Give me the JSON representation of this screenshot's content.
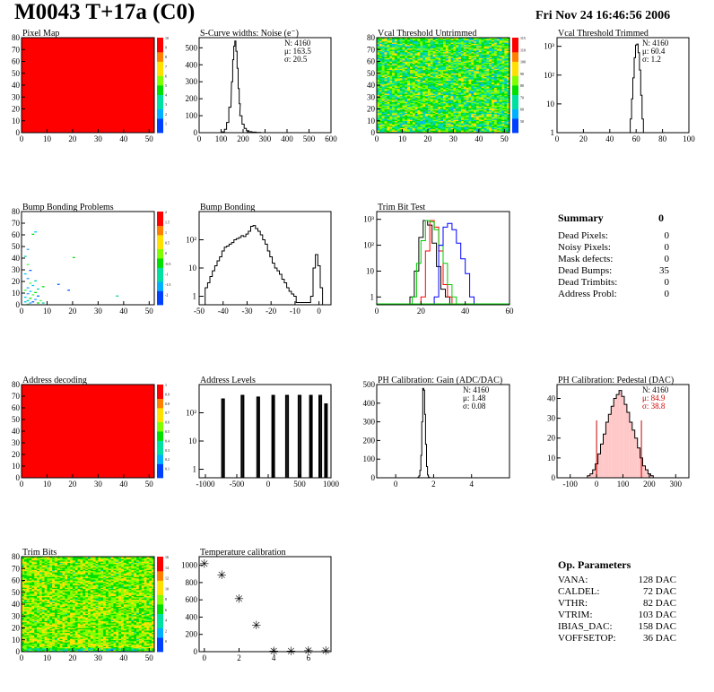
{
  "header": {
    "title": "M0043 T+17a (C0)",
    "date": "Fri Nov 24 16:46:56 2006"
  },
  "chart_data": [
    {
      "type": "heatmap",
      "title": "Pixel Map",
      "xlim": [
        0,
        52
      ],
      "ylim": [
        0,
        80
      ],
      "xticks": [
        0,
        10,
        20,
        30,
        40,
        50
      ],
      "yticks": [
        0,
        10,
        20,
        30,
        40,
        50,
        60,
        70,
        80
      ],
      "palette_labels": [
        "1",
        "2",
        "3",
        "4",
        "5",
        "6",
        "7",
        "8",
        "9",
        "10"
      ],
      "fill": "uniform",
      "value": 10
    },
    {
      "type": "bar",
      "title": "S-Curve widths: Noise (e⁻)",
      "xlim": [
        0,
        600
      ],
      "ylim": [
        0,
        560
      ],
      "xticks": [
        0,
        100,
        200,
        300,
        400,
        500,
        600
      ],
      "yticks": [
        0,
        100,
        200,
        300,
        400,
        500
      ],
      "stats": [
        "N: 4160",
        "μ: 163.5",
        "σ: 20.5"
      ],
      "bins_x": [
        110,
        120,
        130,
        140,
        150,
        155,
        160,
        165,
        170,
        175,
        180,
        185,
        190,
        200,
        210,
        220,
        230,
        250,
        270,
        290
      ],
      "values": [
        5,
        20,
        60,
        150,
        300,
        430,
        510,
        540,
        480,
        380,
        260,
        170,
        100,
        50,
        25,
        12,
        6,
        3,
        1,
        0
      ]
    },
    {
      "type": "heatmap",
      "title": "Vcal Threshold Untrimmed",
      "xlim": [
        0,
        52
      ],
      "ylim": [
        0,
        80
      ],
      "xticks": [
        0,
        10,
        20,
        30,
        40,
        50
      ],
      "yticks": [
        0,
        10,
        20,
        30,
        40,
        50,
        60,
        70,
        80
      ],
      "palette_labels": [
        "50",
        "60",
        "70",
        "80",
        "90",
        "100",
        "110",
        "115"
      ],
      "fill": "noise-green"
    },
    {
      "type": "bar",
      "title": "Vcal Threshold Trimmed",
      "log_y": true,
      "xlim": [
        0,
        100
      ],
      "ylim": [
        1,
        2000
      ],
      "xticks": [
        0,
        20,
        40,
        60,
        80,
        100
      ],
      "yticks": [
        "1",
        "10",
        "10²",
        "10³"
      ],
      "stats": [
        "N: 4160",
        "μ: 60.4",
        "σ: 1.2"
      ],
      "bins_x": [
        55,
        56,
        57,
        58,
        59,
        60,
        61,
        62,
        63,
        64,
        65,
        66
      ],
      "values": [
        1,
        3,
        15,
        80,
        400,
        1100,
        1200,
        600,
        150,
        20,
        3,
        1
      ]
    },
    {
      "type": "scatter",
      "title": "Bump Bonding Problems",
      "xlim": [
        0,
        52
      ],
      "ylim": [
        0,
        80
      ],
      "xticks": [
        0,
        10,
        20,
        30,
        40,
        50
      ],
      "yticks": [
        0,
        10,
        20,
        30,
        40,
        50,
        60,
        70,
        80
      ],
      "palette_labels": [
        "-2",
        "-1.5",
        "-1",
        "-0.5",
        "0",
        "0.5",
        "1",
        "1.5",
        "2"
      ],
      "points": [
        [
          5,
          62
        ],
        [
          4,
          60
        ],
        [
          2,
          47
        ],
        [
          1,
          41
        ],
        [
          2,
          34
        ],
        [
          3,
          29
        ],
        [
          1,
          26
        ],
        [
          20,
          40
        ],
        [
          2,
          22
        ],
        [
          5,
          20
        ],
        [
          3,
          18
        ],
        [
          14,
          17
        ],
        [
          4,
          16
        ],
        [
          8,
          15
        ],
        [
          2,
          14
        ],
        [
          6,
          13
        ],
        [
          1,
          12
        ],
        [
          18,
          12
        ],
        [
          3,
          11
        ],
        [
          5,
          10
        ],
        [
          2,
          9
        ],
        [
          37,
          7
        ],
        [
          4,
          8
        ],
        [
          6,
          7
        ],
        [
          1,
          6
        ],
        [
          3,
          5
        ],
        [
          5,
          4
        ],
        [
          2,
          3
        ],
        [
          7,
          3
        ],
        [
          4,
          2
        ],
        [
          1,
          2
        ],
        [
          6,
          1
        ],
        [
          3,
          1
        ],
        [
          8,
          1
        ],
        [
          2,
          0
        ]
      ]
    },
    {
      "type": "bar",
      "title": "Bump Bonding",
      "log_y": true,
      "xlim": [
        -50,
        5
      ],
      "ylim": [
        0.5,
        1000
      ],
      "xticks": [
        -50,
        -40,
        -30,
        -20,
        -10,
        0
      ],
      "yticks": [
        "1",
        "10",
        "10²"
      ],
      "bins_x": [
        -47,
        -46,
        -45,
        -44,
        -43,
        -42,
        -41,
        -40,
        -39,
        -38,
        -37,
        -36,
        -35,
        -34,
        -33,
        -32,
        -31,
        -30,
        -29,
        -28,
        -27,
        -26,
        -25,
        -24,
        -23,
        -22,
        -21,
        -20,
        -19,
        -18,
        -17,
        -16,
        -15,
        -14,
        -13,
        -12,
        -11,
        -10,
        -9,
        -8,
        -7,
        -6,
        -5,
        -4,
        -3,
        -2,
        -1,
        0,
        1
      ],
      "values": [
        2,
        3,
        5,
        8,
        12,
        18,
        25,
        40,
        55,
        60,
        70,
        80,
        100,
        110,
        120,
        140,
        130,
        160,
        200,
        300,
        320,
        250,
        200,
        150,
        100,
        70,
        40,
        25,
        15,
        10,
        8,
        6,
        4,
        3,
        2,
        1.5,
        1.2,
        1,
        0.6,
        0.6,
        0.6,
        0.6,
        0.6,
        0.6,
        1,
        10,
        30,
        12,
        2
      ]
    },
    {
      "type": "line",
      "title": "Trim Bit Test",
      "log_y": true,
      "xlim": [
        0,
        60
      ],
      "ylim": [
        0.5,
        2000
      ],
      "xticks": [
        0,
        20,
        40,
        60
      ],
      "yticks": [
        "1",
        "10",
        "10²",
        "10³"
      ],
      "series": [
        {
          "color": "#000000",
          "x": [
            16,
            18,
            20,
            22,
            24,
            26,
            28,
            30,
            32
          ],
          "values": [
            1,
            10,
            200,
            900,
            600,
            120,
            15,
            2,
            1
          ]
        },
        {
          "color": "#ff0000",
          "x": [
            21,
            23,
            25,
            27,
            29,
            31,
            33
          ],
          "values": [
            1,
            60,
            900,
            500,
            60,
            3,
            1
          ]
        },
        {
          "color": "#00cc00",
          "x": [
            17,
            19,
            21,
            23,
            25,
            27,
            29,
            31,
            33,
            35
          ],
          "values": [
            1,
            20,
            150,
            900,
            800,
            400,
            100,
            20,
            3,
            1
          ]
        },
        {
          "color": "#0000ff",
          "x": [
            27,
            29,
            31,
            33,
            35,
            37,
            39,
            41,
            43
          ],
          "values": [
            1,
            100,
            500,
            700,
            400,
            120,
            30,
            8,
            1
          ]
        }
      ]
    },
    {
      "type": "heatmap",
      "title": "Address decoding",
      "xlim": [
        0,
        52
      ],
      "ylim": [
        0,
        80
      ],
      "xticks": [
        0,
        10,
        20,
        30,
        40,
        50
      ],
      "yticks": [
        0,
        10,
        20,
        30,
        40,
        50,
        60,
        70,
        80
      ],
      "palette_labels": [
        "0.1",
        "0.2",
        "0.3",
        "0.4",
        "0.5",
        "0.6",
        "0.7",
        "0.8",
        "0.9",
        "1"
      ],
      "fill": "uniform",
      "value": 1
    },
    {
      "type": "bar",
      "title": "Address Levels",
      "log_y": true,
      "xlim": [
        -1100,
        1000
      ],
      "ylim": [
        0.5,
        1000
      ],
      "xticks": [
        -1000,
        -500,
        0,
        500,
        1000
      ],
      "yticks": [
        "1",
        "10",
        "10²"
      ],
      "peaks": [
        -720,
        -410,
        -160,
        80,
        300,
        500,
        680,
        830,
        920
      ],
      "peak_heights": [
        300,
        400,
        350,
        400,
        400,
        400,
        400,
        400,
        200
      ]
    },
    {
      "type": "bar",
      "title": "PH Calibration: Gain (ADC/DAC)",
      "xlim": [
        -1,
        6
      ],
      "ylim": [
        0,
        500
      ],
      "xticks": [
        0,
        2,
        4
      ],
      "yticks": [
        0,
        100,
        200,
        300,
        400,
        500
      ],
      "stats": [
        "N: 4160",
        "μ: 1.48",
        "σ: 0.08"
      ],
      "bins_x": [
        1.2,
        1.25,
        1.3,
        1.35,
        1.4,
        1.45,
        1.5,
        1.55,
        1.6,
        1.65,
        1.7,
        1.75
      ],
      "values": [
        3,
        10,
        40,
        120,
        300,
        480,
        470,
        340,
        180,
        60,
        15,
        4
      ]
    },
    {
      "type": "bar",
      "title": "PH Calibration: Pedestal (DAC)",
      "xlim": [
        -150,
        350
      ],
      "ylim": [
        0,
        47
      ],
      "xticks": [
        -100,
        0,
        100,
        200,
        300
      ],
      "yticks": [
        0,
        10,
        20,
        30,
        40
      ],
      "stats": [
        "N: 4160",
        "μ: 84.9",
        "σ: 38.8"
      ],
      "stats_colors": [
        "#000000",
        "#cc0000",
        "#cc0000"
      ],
      "range_lines": [
        0,
        170
      ],
      "bins_x": [
        -30,
        -20,
        -10,
        0,
        10,
        20,
        30,
        40,
        50,
        60,
        70,
        80,
        90,
        100,
        110,
        120,
        130,
        140,
        150,
        160,
        170,
        180,
        190,
        200,
        210,
        220
      ],
      "values": [
        1,
        2,
        4,
        7,
        12,
        17,
        22,
        28,
        32,
        36,
        40,
        42,
        44,
        41,
        37,
        33,
        28,
        24,
        20,
        15,
        10,
        6,
        4,
        2,
        1,
        0
      ]
    },
    {
      "type": "heatmap",
      "title": "Trim Bits",
      "xlim": [
        0,
        52
      ],
      "ylim": [
        0,
        80
      ],
      "xticks": [
        0,
        10,
        20,
        30,
        40,
        50
      ],
      "yticks": [
        0,
        10,
        20,
        30,
        40,
        50,
        60,
        70,
        80
      ],
      "palette_labels": [
        "0",
        "2",
        "4",
        "6",
        "8",
        "10",
        "12",
        "14",
        "16"
      ],
      "fill": "noise-lime"
    },
    {
      "type": "scatter",
      "title": "Temperature calibration",
      "xlim": [
        -0.3,
        7.3
      ],
      "ylim": [
        0,
        1100
      ],
      "xticks": [
        0,
        2,
        4,
        6
      ],
      "yticks": [
        0,
        200,
        400,
        600,
        800,
        1000
      ],
      "points": [
        [
          0,
          1020
        ],
        [
          1,
          890
        ],
        [
          2,
          620
        ],
        [
          3,
          310
        ],
        [
          4,
          10
        ],
        [
          5,
          10
        ],
        [
          6,
          15
        ],
        [
          7,
          15
        ]
      ]
    }
  ],
  "summary": {
    "title": "Summary",
    "value": "0",
    "rows": [
      {
        "label": "Dead Pixels:",
        "value": "0"
      },
      {
        "label": "Noisy Pixels:",
        "value": "0"
      },
      {
        "label": "Mask defects:",
        "value": "0"
      },
      {
        "label": "Dead Bumps:",
        "value": "35"
      },
      {
        "label": "Dead Trimbits:",
        "value": "0"
      },
      {
        "label": "Address Probl:",
        "value": "0"
      }
    ]
  },
  "op_params": {
    "title": "Op. Parameters",
    "rows": [
      {
        "label": "VANA:",
        "value": "128 DAC"
      },
      {
        "label": "CALDEL:",
        "value": "72 DAC"
      },
      {
        "label": "VTHR:",
        "value": "82 DAC"
      },
      {
        "label": "VTRIM:",
        "value": "103 DAC"
      },
      {
        "label": "IBIAS_DAC:",
        "value": "158 DAC"
      },
      {
        "label": "VOFFSETOP:",
        "value": "36 DAC"
      }
    ]
  }
}
